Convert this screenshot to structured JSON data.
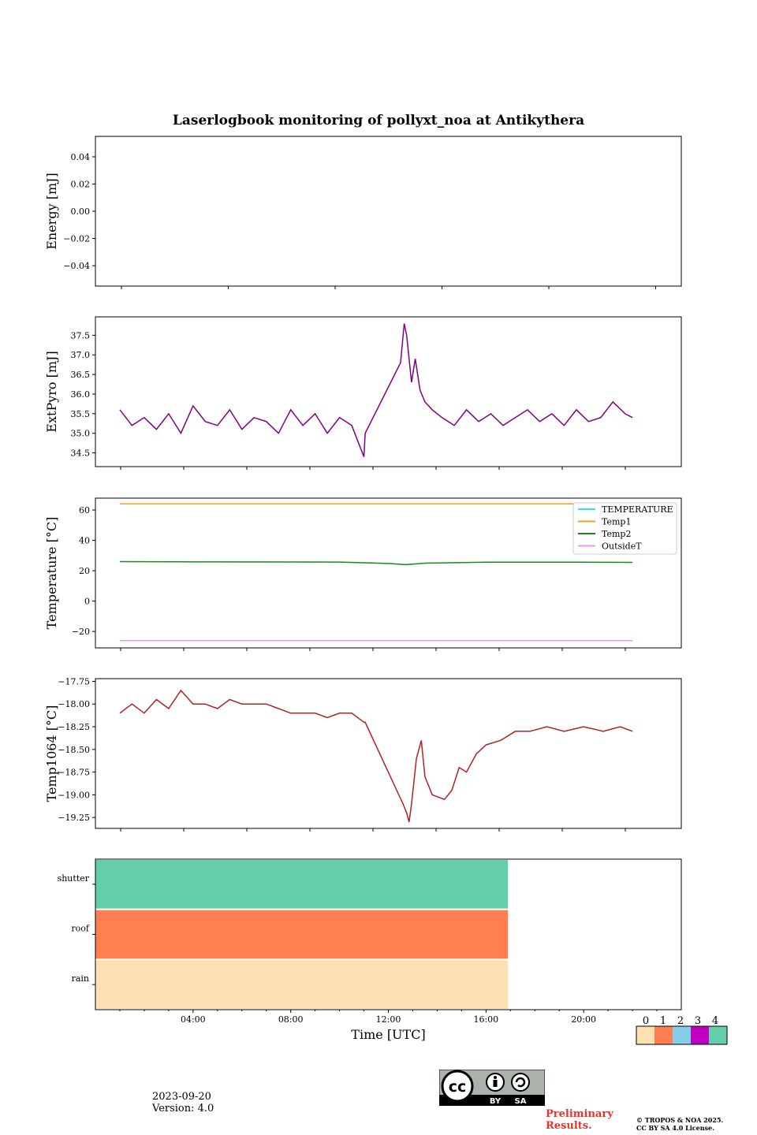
{
  "figure": {
    "title": "Laserlogbook monitoring of pollyxt_noa at Antikythera",
    "date": "2023-09-20",
    "version": "Version: 4.0",
    "preliminary": [
      "Preliminary",
      "Results."
    ],
    "copyright": [
      "© TROPOS & NOA 2025.",
      "CC BY SA 4.0 License."
    ],
    "license_badge": [
      "BY",
      "SA"
    ]
  },
  "chart_data": [
    {
      "type": "line",
      "ylabel": "Energy [mJ]",
      "ylim": [
        -0.055,
        0.055
      ],
      "yticks": [
        -0.04,
        -0.02,
        0.0,
        0.02,
        0.04
      ],
      "ytick_labels": [
        "−0.04",
        "−0.02",
        "0.00",
        "0.02",
        "0.04"
      ],
      "series": []
    },
    {
      "type": "line",
      "ylabel": "ExtPyro [mJ]",
      "ylim": [
        34.15,
        37.97
      ],
      "yticks": [
        34.5,
        35.0,
        35.5,
        36.0,
        36.5,
        37.0,
        37.5
      ],
      "ytick_labels": [
        "34.5",
        "35.0",
        "35.5",
        "36.0",
        "36.5",
        "37.0",
        "37.5"
      ],
      "x_hours": [
        1.0,
        1.5,
        2.0,
        2.5,
        3.0,
        3.5,
        4.0,
        4.5,
        5.0,
        5.5,
        6.0,
        6.5,
        7.0,
        7.5,
        8.0,
        8.5,
        9.0,
        9.5,
        10.0,
        10.5,
        11.0,
        11.05,
        12.5,
        12.65,
        12.75,
        12.85,
        12.95,
        13.1,
        13.3,
        13.5,
        13.8,
        14.2,
        14.7,
        15.2,
        15.7,
        16.2,
        16.7,
        17.2,
        17.7,
        18.2,
        18.7,
        19.2,
        19.7,
        20.2,
        20.7,
        21.2,
        21.7,
        22.0
      ],
      "series": [
        {
          "color": "#800080",
          "values": [
            35.6,
            35.2,
            35.4,
            35.1,
            35.5,
            35.0,
            35.7,
            35.3,
            35.2,
            35.6,
            35.1,
            35.4,
            35.3,
            35.0,
            35.6,
            35.2,
            35.5,
            35.0,
            35.4,
            35.2,
            34.4,
            35.0,
            36.8,
            37.8,
            37.5,
            36.9,
            36.3,
            36.9,
            36.1,
            35.8,
            35.6,
            35.4,
            35.2,
            35.6,
            35.3,
            35.5,
            35.2,
            35.4,
            35.6,
            35.3,
            35.5,
            35.2,
            35.6,
            35.3,
            35.4,
            35.8,
            35.5,
            35.4
          ]
        }
      ]
    },
    {
      "type": "line",
      "ylabel": "Temperature [°C]",
      "ylim": [
        -30.8,
        67.8
      ],
      "yticks": [
        -20,
        0,
        20,
        40,
        60
      ],
      "ytick_labels": [
        "−20",
        "0",
        "20",
        "40",
        "60"
      ],
      "legend_position": "top-right",
      "x_hours": [
        1.0,
        5.0,
        10.0,
        12.0,
        12.7,
        13.5,
        16.0,
        20.0,
        22.0
      ],
      "series": [
        {
          "name": "TEMPERATURE",
          "color": "#29e6e6",
          "values": [],
          "hidden_in_plot": true
        },
        {
          "name": "Temp1",
          "color": "#f0a020",
          "values": [
            64,
            64,
            64,
            64,
            64,
            64,
            64,
            64,
            64
          ]
        },
        {
          "name": "Temp2",
          "color": "#1a8a1a",
          "values": [
            26,
            25.8,
            25.7,
            24.8,
            24,
            25,
            25.6,
            25.6,
            25.5
          ]
        },
        {
          "name": "OutsideT",
          "color": "#e99ae9",
          "values": [
            -26,
            -26,
            -26,
            -26,
            -26,
            -26,
            -26,
            -26,
            -26
          ]
        }
      ]
    },
    {
      "type": "line",
      "ylabel": "Temp1064 [°C]",
      "ylim": [
        -19.37,
        -17.72
      ],
      "yticks": [
        -19.25,
        -19.0,
        -18.75,
        -18.5,
        -18.25,
        -18.0,
        -17.75
      ],
      "ytick_labels": [
        "−19.25",
        "−19.00",
        "−18.75",
        "−18.50",
        "−18.25",
        "−18.00",
        "−17.75"
      ],
      "x_hours": [
        1.0,
        1.5,
        2.0,
        2.5,
        3.0,
        3.5,
        4.0,
        4.5,
        5.0,
        5.5,
        6.0,
        7.0,
        7.5,
        8.0,
        8.5,
        9.0,
        9.5,
        10.0,
        10.5,
        11.0,
        11.05,
        12.6,
        12.75,
        12.85,
        12.95,
        13.15,
        13.35,
        13.5,
        13.8,
        14.3,
        14.6,
        14.9,
        15.2,
        15.6,
        16.0,
        16.6,
        17.2,
        17.8,
        18.5,
        19.2,
        20.0,
        20.8,
        21.5,
        22.0
      ],
      "series": [
        {
          "color": "#b22222",
          "values": [
            -18.1,
            -18.0,
            -18.1,
            -17.95,
            -18.05,
            -17.85,
            -18.0,
            -18.0,
            -18.05,
            -17.95,
            -18.0,
            -18.0,
            -18.05,
            -18.1,
            -18.1,
            -18.1,
            -18.15,
            -18.1,
            -18.1,
            -18.2,
            -18.2,
            -19.1,
            -19.2,
            -19.3,
            -19.1,
            -18.6,
            -18.4,
            -18.8,
            -19.0,
            -19.05,
            -18.95,
            -18.7,
            -18.75,
            -18.55,
            -18.45,
            -18.4,
            -18.3,
            -18.3,
            -18.25,
            -18.3,
            -18.25,
            -18.3,
            -18.25,
            -18.3
          ]
        }
      ]
    },
    {
      "type": "heatmap",
      "xlabel": "Time [UTC]",
      "xlim_hours": [
        0,
        24
      ],
      "xticks_hours": [
        4,
        8,
        12,
        16,
        20
      ],
      "xtick_labels": [
        "04:00",
        "08:00",
        "12:00",
        "16:00",
        "20:00"
      ],
      "rows": [
        "rain",
        "roof",
        "shutter"
      ],
      "segments": [
        {
          "row": "shutter",
          "start_hour": 0,
          "end_hour": 16.9,
          "value": 4
        },
        {
          "row": "roof",
          "start_hour": 0,
          "end_hour": 16.9,
          "value": 1
        },
        {
          "row": "rain",
          "start_hour": 0,
          "end_hour": 16.9,
          "value": 0
        }
      ],
      "colorbar": {
        "labels": [
          "0",
          "1",
          "2",
          "3",
          "4"
        ],
        "colors": [
          "#fde0b2",
          "#ff7f50",
          "#87ceeb",
          "#c000c0",
          "#66cdaa"
        ]
      }
    }
  ]
}
